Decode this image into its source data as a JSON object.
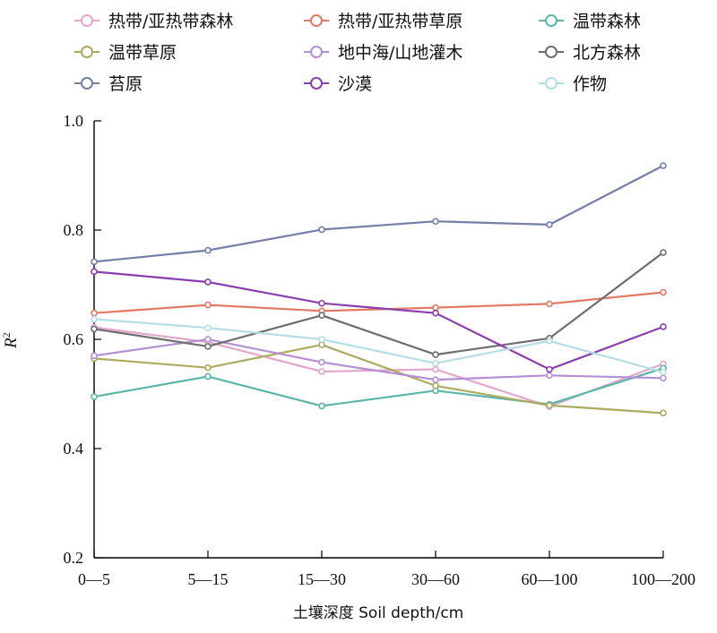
{
  "chart_data": {
    "type": "line",
    "title": "",
    "xlabel": "土壤深度 Soil depth/cm",
    "ylabel": "R²",
    "categories": [
      "0—5",
      "5—15",
      "15—30",
      "30—60",
      "60—100",
      "100—200"
    ],
    "ylim": [
      0.2,
      1.0
    ],
    "yticks": [
      "0.2",
      "0.4",
      "0.6",
      "0.8",
      "1.0"
    ],
    "grid": false,
    "legend_position": "top",
    "series": [
      {
        "name": "热带/亚热带森林",
        "color": "#e3a6cc",
        "values": [
          0.622,
          0.595,
          0.541,
          0.545,
          0.477,
          0.555
        ]
      },
      {
        "name": "热带/亚热带草原",
        "color": "#df7a63",
        "values": [
          0.648,
          0.663,
          0.652,
          0.658,
          0.665,
          0.686
        ]
      },
      {
        "name": "温带森林",
        "color": "#5bb5a8",
        "values": [
          0.495,
          0.532,
          0.478,
          0.506,
          0.481,
          0.547
        ]
      },
      {
        "name": "温带草原",
        "color": "#acaa5e",
        "values": [
          0.565,
          0.548,
          0.59,
          0.515,
          0.479,
          0.465
        ]
      },
      {
        "name": "地中海/山地灌木",
        "color": "#b48fd3",
        "values": [
          0.57,
          0.6,
          0.558,
          0.526,
          0.534,
          0.529
        ]
      },
      {
        "name": "北方森林",
        "color": "#6e6e6e",
        "values": [
          0.619,
          0.587,
          0.644,
          0.572,
          0.602,
          0.759
        ]
      },
      {
        "name": "苔原",
        "color": "#747ea8",
        "values": [
          0.742,
          0.763,
          0.801,
          0.816,
          0.81,
          0.918
        ]
      },
      {
        "name": "沙漠",
        "color": "#8b3fae",
        "values": [
          0.724,
          0.705,
          0.666,
          0.648,
          0.545,
          0.623
        ]
      },
      {
        "name": "作物",
        "color": "#b5dde6",
        "values": [
          0.637,
          0.621,
          0.6,
          0.556,
          0.597,
          0.54
        ]
      }
    ]
  }
}
